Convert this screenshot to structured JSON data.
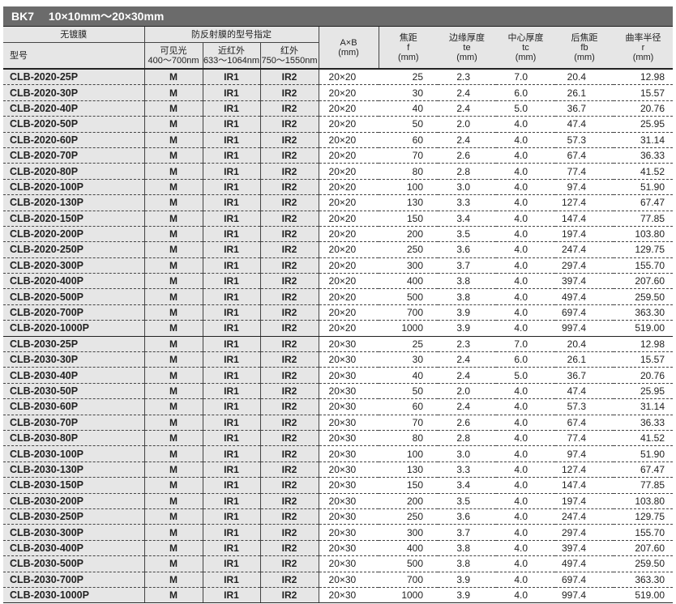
{
  "title": {
    "material": "BK7",
    "range": "10×10mm～20×30mm"
  },
  "header": {
    "uncoated": "无镀膜",
    "ar_group": "防反射膜的型号指定",
    "model": "型号",
    "visible": "可见光",
    "visible_range": "400～700nm",
    "nir": "近红外",
    "nir_range": "633～1064nm",
    "ir": "红外",
    "ir_range": "750～1550nm",
    "ab": "A×B",
    "ab_unit": "(mm)",
    "f": "焦距",
    "f_sym": "f",
    "f_unit": "(mm)",
    "te": "边缘厚度",
    "te_sym": "te",
    "te_unit": "(mm)",
    "tc": "中心厚度",
    "tc_sym": "tc",
    "tc_unit": "(mm)",
    "fb": "后焦距",
    "fb_sym": "fb",
    "fb_unit": "(mm)",
    "r": "曲率半径",
    "r_sym": "r",
    "r_unit": "(mm)"
  },
  "rows": [
    [
      "CLB-2020-25P",
      "M",
      "IR1",
      "IR2",
      "20×20",
      "25",
      "2.3",
      "7.0",
      "20.4",
      "12.98"
    ],
    [
      "CLB-2020-30P",
      "M",
      "IR1",
      "IR2",
      "20×20",
      "30",
      "2.4",
      "6.0",
      "26.1",
      "15.57"
    ],
    [
      "CLB-2020-40P",
      "M",
      "IR1",
      "IR2",
      "20×20",
      "40",
      "2.4",
      "5.0",
      "36.7",
      "20.76"
    ],
    [
      "CLB-2020-50P",
      "M",
      "IR1",
      "IR2",
      "20×20",
      "50",
      "2.0",
      "4.0",
      "47.4",
      "25.95"
    ],
    [
      "CLB-2020-60P",
      "M",
      "IR1",
      "IR2",
      "20×20",
      "60",
      "2.4",
      "4.0",
      "57.3",
      "31.14"
    ],
    [
      "CLB-2020-70P",
      "M",
      "IR1",
      "IR2",
      "20×20",
      "70",
      "2.6",
      "4.0",
      "67.4",
      "36.33"
    ],
    [
      "CLB-2020-80P",
      "M",
      "IR1",
      "IR2",
      "20×20",
      "80",
      "2.8",
      "4.0",
      "77.4",
      "41.52"
    ],
    [
      "CLB-2020-100P",
      "M",
      "IR1",
      "IR2",
      "20×20",
      "100",
      "3.0",
      "4.0",
      "97.4",
      "51.90"
    ],
    [
      "CLB-2020-130P",
      "M",
      "IR1",
      "IR2",
      "20×20",
      "130",
      "3.3",
      "4.0",
      "127.4",
      "67.47"
    ],
    [
      "CLB-2020-150P",
      "M",
      "IR1",
      "IR2",
      "20×20",
      "150",
      "3.4",
      "4.0",
      "147.4",
      "77.85"
    ],
    [
      "CLB-2020-200P",
      "M",
      "IR1",
      "IR2",
      "20×20",
      "200",
      "3.5",
      "4.0",
      "197.4",
      "103.80"
    ],
    [
      "CLB-2020-250P",
      "M",
      "IR1",
      "IR2",
      "20×20",
      "250",
      "3.6",
      "4.0",
      "247.4",
      "129.75"
    ],
    [
      "CLB-2020-300P",
      "M",
      "IR1",
      "IR2",
      "20×20",
      "300",
      "3.7",
      "4.0",
      "297.4",
      "155.70"
    ],
    [
      "CLB-2020-400P",
      "M",
      "IR1",
      "IR2",
      "20×20",
      "400",
      "3.8",
      "4.0",
      "397.4",
      "207.60"
    ],
    [
      "CLB-2020-500P",
      "M",
      "IR1",
      "IR2",
      "20×20",
      "500",
      "3.8",
      "4.0",
      "497.4",
      "259.50"
    ],
    [
      "CLB-2020-700P",
      "M",
      "IR1",
      "IR2",
      "20×20",
      "700",
      "3.9",
      "4.0",
      "697.4",
      "363.30"
    ],
    [
      "CLB-2020-1000P",
      "M",
      "IR1",
      "IR2",
      "20×20",
      "1000",
      "3.9",
      "4.0",
      "997.4",
      "519.00"
    ],
    [
      "CLB-2030-25P",
      "M",
      "IR1",
      "IR2",
      "20×30",
      "25",
      "2.3",
      "7.0",
      "20.4",
      "12.98"
    ],
    [
      "CLB-2030-30P",
      "M",
      "IR1",
      "IR2",
      "20×30",
      "30",
      "2.4",
      "6.0",
      "26.1",
      "15.57"
    ],
    [
      "CLB-2030-40P",
      "M",
      "IR1",
      "IR2",
      "20×30",
      "40",
      "2.4",
      "5.0",
      "36.7",
      "20.76"
    ],
    [
      "CLB-2030-50P",
      "M",
      "IR1",
      "IR2",
      "20×30",
      "50",
      "2.0",
      "4.0",
      "47.4",
      "25.95"
    ],
    [
      "CLB-2030-60P",
      "M",
      "IR1",
      "IR2",
      "20×30",
      "60",
      "2.4",
      "4.0",
      "57.3",
      "31.14"
    ],
    [
      "CLB-2030-70P",
      "M",
      "IR1",
      "IR2",
      "20×30",
      "70",
      "2.6",
      "4.0",
      "67.4",
      "36.33"
    ],
    [
      "CLB-2030-80P",
      "M",
      "IR1",
      "IR2",
      "20×30",
      "80",
      "2.8",
      "4.0",
      "77.4",
      "41.52"
    ],
    [
      "CLB-2030-100P",
      "M",
      "IR1",
      "IR2",
      "20×30",
      "100",
      "3.0",
      "4.0",
      "97.4",
      "51.90"
    ],
    [
      "CLB-2030-130P",
      "M",
      "IR1",
      "IR2",
      "20×30",
      "130",
      "3.3",
      "4.0",
      "127.4",
      "67.47"
    ],
    [
      "CLB-2030-150P",
      "M",
      "IR1",
      "IR2",
      "20×30",
      "150",
      "3.4",
      "4.0",
      "147.4",
      "77.85"
    ],
    [
      "CLB-2030-200P",
      "M",
      "IR1",
      "IR2",
      "20×30",
      "200",
      "3.5",
      "4.0",
      "197.4",
      "103.80"
    ],
    [
      "CLB-2030-250P",
      "M",
      "IR1",
      "IR2",
      "20×30",
      "250",
      "3.6",
      "4.0",
      "247.4",
      "129.75"
    ],
    [
      "CLB-2030-300P",
      "M",
      "IR1",
      "IR2",
      "20×30",
      "300",
      "3.7",
      "4.0",
      "297.4",
      "155.70"
    ],
    [
      "CLB-2030-400P",
      "M",
      "IR1",
      "IR2",
      "20×30",
      "400",
      "3.8",
      "4.0",
      "397.4",
      "207.60"
    ],
    [
      "CLB-2030-500P",
      "M",
      "IR1",
      "IR2",
      "20×30",
      "500",
      "3.8",
      "4.0",
      "497.4",
      "259.50"
    ],
    [
      "CLB-2030-700P",
      "M",
      "IR1",
      "IR2",
      "20×30",
      "700",
      "3.9",
      "4.0",
      "697.4",
      "363.30"
    ],
    [
      "CLB-2030-1000P",
      "M",
      "IR1",
      "IR2",
      "20×30",
      "1000",
      "3.9",
      "4.0",
      "997.4",
      "519.00"
    ]
  ]
}
